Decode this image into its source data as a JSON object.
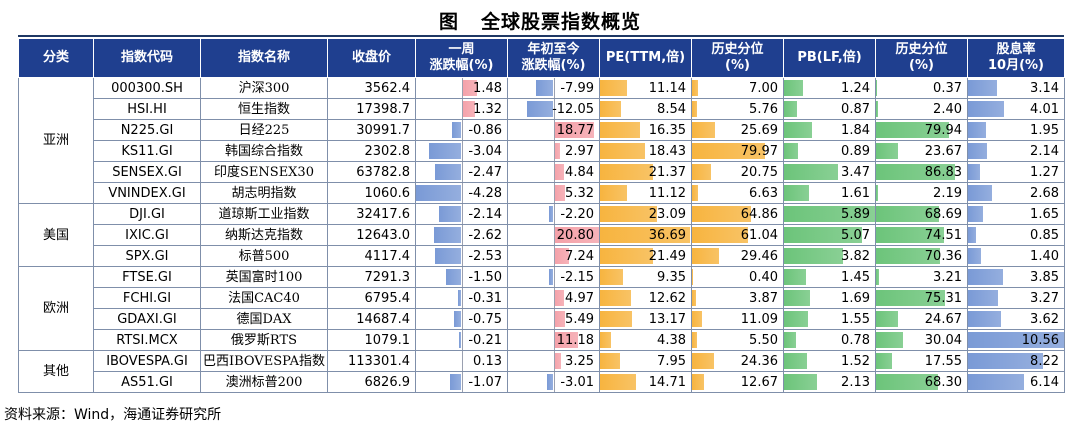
{
  "title_prefix": "图",
  "title": "全球股票指数概览",
  "source": "资料来源：Wind，海通证券研究所",
  "headers": [
    "分类",
    "指数代码",
    "指数名称",
    "收盘价",
    "一周\n涨跌幅(%)",
    "年初至今\n涨跌幅(%)",
    "PE(TTM,倍)",
    "历史分位\n(%)",
    "PB(LF,倍)",
    "历史分位\n(%)",
    "股息率\n10月(%)"
  ],
  "groups": [
    {
      "category": "亚洲",
      "rows": [
        {
          "code": "000300.SH",
          "name": "沪深300",
          "close": "3562.4",
          "week": "1.48",
          "ytd": "-7.99",
          "pe": "11.14",
          "pe_pct": "7.00",
          "pb": "1.24",
          "pb_pct": "0.37",
          "div": "3.14"
        },
        {
          "code": "HSI.HI",
          "name": "恒生指数",
          "close": "17398.7",
          "week": "1.32",
          "ytd": "-12.05",
          "pe": "8.54",
          "pe_pct": "5.76",
          "pb": "0.87",
          "pb_pct": "2.40",
          "div": "4.01"
        },
        {
          "code": "N225.GI",
          "name": "日经225",
          "close": "30991.7",
          "week": "-0.86",
          "ytd": "18.77",
          "pe": "16.35",
          "pe_pct": "25.69",
          "pb": "1.84",
          "pb_pct": "79.94",
          "div": "1.95"
        },
        {
          "code": "KS11.GI",
          "name": "韩国综合指数",
          "close": "2302.8",
          "week": "-3.04",
          "ytd": "2.97",
          "pe": "18.43",
          "pe_pct": "79.97",
          "pb": "0.89",
          "pb_pct": "23.67",
          "div": "2.14"
        },
        {
          "code": "SENSEX.GI",
          "name": "印度SENSEX30",
          "close": "63782.8",
          "week": "-2.47",
          "ytd": "4.84",
          "pe": "21.37",
          "pe_pct": "20.75",
          "pb": "3.47",
          "pb_pct": "86.83",
          "div": "1.27"
        },
        {
          "code": "VNINDEX.GI",
          "name": "胡志明指数",
          "close": "1060.6",
          "week": "-4.28",
          "ytd": "5.32",
          "pe": "11.12",
          "pe_pct": "6.63",
          "pb": "1.61",
          "pb_pct": "2.19",
          "div": "2.68"
        }
      ]
    },
    {
      "category": "美国",
      "rows": [
        {
          "code": "DJI.GI",
          "name": "道琼斯工业指数",
          "close": "32417.6",
          "week": "-2.14",
          "ytd": "-2.20",
          "pe": "23.09",
          "pe_pct": "64.86",
          "pb": "5.89",
          "pb_pct": "68.69",
          "div": "1.65"
        },
        {
          "code": "IXIC.GI",
          "name": "纳斯达克指数",
          "close": "12643.0",
          "week": "-2.62",
          "ytd": "20.80",
          "pe": "36.69",
          "pe_pct": "61.04",
          "pb": "5.07",
          "pb_pct": "74.51",
          "div": "0.85"
        },
        {
          "code": "SPX.GI",
          "name": "标普500",
          "close": "4117.4",
          "week": "-2.53",
          "ytd": "7.24",
          "pe": "21.49",
          "pe_pct": "29.46",
          "pb": "3.82",
          "pb_pct": "70.36",
          "div": "1.40"
        }
      ]
    },
    {
      "category": "欧洲",
      "rows": [
        {
          "code": "FTSE.GI",
          "name": "英国富时100",
          "close": "7291.3",
          "week": "-1.50",
          "ytd": "-2.15",
          "pe": "9.35",
          "pe_pct": "0.40",
          "pb": "1.45",
          "pb_pct": "3.21",
          "div": "3.85"
        },
        {
          "code": "FCHI.GI",
          "name": "法国CAC40",
          "close": "6795.4",
          "week": "-0.31",
          "ytd": "4.97",
          "pe": "12.62",
          "pe_pct": "3.87",
          "pb": "1.69",
          "pb_pct": "75.31",
          "div": "3.27"
        },
        {
          "code": "GDAXI.GI",
          "name": "德国DAX",
          "close": "14687.4",
          "week": "-0.75",
          "ytd": "5.49",
          "pe": "13.17",
          "pe_pct": "11.09",
          "pb": "1.55",
          "pb_pct": "24.67",
          "div": "3.62"
        },
        {
          "code": "RTSI.MCX",
          "name": "俄罗斯RTS",
          "close": "1079.1",
          "week": "-0.21",
          "ytd": "11.18",
          "pe": "4.38",
          "pe_pct": "5.50",
          "pb": "0.78",
          "pb_pct": "30.04",
          "div": "10.56"
        }
      ]
    },
    {
      "category": "其他",
      "rows": [
        {
          "code": "IBOVESPA.GI",
          "name": "巴西IBOVESPA指数",
          "close": "113301.4",
          "week": "0.13",
          "ytd": "3.25",
          "pe": "7.95",
          "pe_pct": "24.36",
          "pb": "1.52",
          "pb_pct": "17.55",
          "div": "8.22"
        },
        {
          "code": "AS51.GI",
          "name": "澳洲标普200",
          "close": "6826.9",
          "week": "-1.07",
          "ytd": "-3.01",
          "pe": "14.71",
          "pe_pct": "12.67",
          "pb": "2.13",
          "pb_pct": "68.30",
          "div": "6.14"
        }
      ]
    }
  ],
  "colors": {
    "header_bg": "#1f3f8f",
    "positive_bar": "#f4a0a8",
    "negative_bar": "#7a9ad6",
    "pe_bar": "#f7b43f",
    "pb_bar": "#6cc47a",
    "div_bar": "#7a9ad6"
  }
}
